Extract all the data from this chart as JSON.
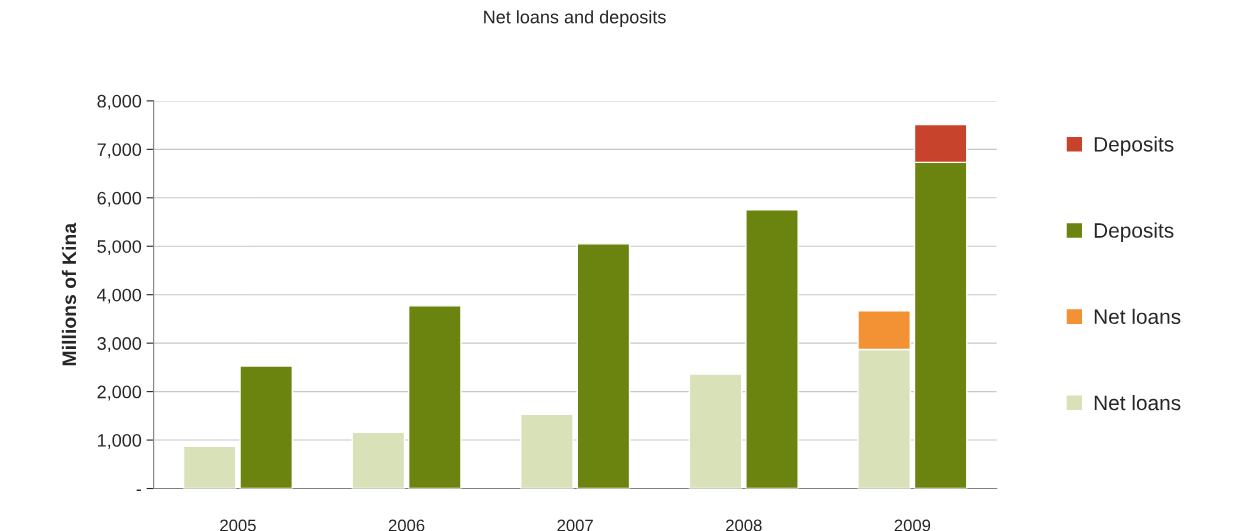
{
  "chart_data": {
    "type": "bar",
    "title": "Net loans and deposits",
    "ylabel": "Millions of Kina",
    "categories": [
      "2005",
      "2006",
      "2007",
      "2008",
      "2009"
    ],
    "series": [
      {
        "name": "Net loans",
        "color": "#d9e1b9",
        "values": [
          870,
          1160,
          1530,
          2360,
          2870
        ]
      },
      {
        "name": "Net loans",
        "color": "#f29234",
        "base": [
          null,
          null,
          null,
          null,
          2870
        ],
        "values": [
          null,
          null,
          null,
          null,
          800
        ]
      },
      {
        "name": "Deposits",
        "color": "#6b840f",
        "values": [
          2530,
          3770,
          5050,
          5750,
          6730
        ]
      },
      {
        "name": "Deposits",
        "color": "#c8432b",
        "base": [
          null,
          null,
          null,
          null,
          6730
        ],
        "values": [
          null,
          null,
          null,
          null,
          780
        ]
      }
    ],
    "ylim": [
      0,
      8000
    ],
    "yticks": [
      {
        "value": 0,
        "label": "-"
      },
      {
        "value": 1000,
        "label": "1,000"
      },
      {
        "value": 2000,
        "label": "2,000"
      },
      {
        "value": 3000,
        "label": "3,000"
      },
      {
        "value": 4000,
        "label": "4,000"
      },
      {
        "value": 5000,
        "label": "5,000"
      },
      {
        "value": 6000,
        "label": "6,000"
      },
      {
        "value": 7000,
        "label": "7,000"
      },
      {
        "value": 8000,
        "label": "8,000"
      }
    ],
    "grid": "y",
    "legend": "right"
  }
}
